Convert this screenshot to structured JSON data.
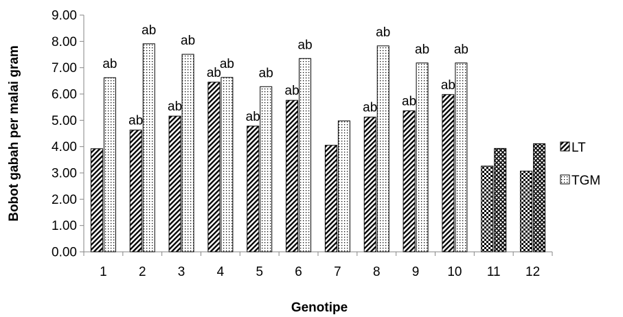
{
  "chart_data": {
    "type": "bar",
    "xlabel": "Genotipe",
    "ylabel": "Bobot gabah per malai gram",
    "ylim": [
      0,
      9
    ],
    "yticks": [
      "0.00",
      "1.00",
      "2.00",
      "3.00",
      "4.00",
      "5.00",
      "6.00",
      "7.00",
      "8.00",
      "9.00"
    ],
    "categories": [
      "1",
      "2",
      "3",
      "4",
      "5",
      "6",
      "7",
      "8",
      "9",
      "10",
      "11",
      "12"
    ],
    "legend_position": "right",
    "grid": false,
    "series": [
      {
        "name": "LT",
        "values": [
          3.92,
          4.63,
          5.16,
          6.45,
          4.78,
          5.76,
          4.05,
          5.12,
          5.36,
          5.98,
          3.26,
          3.07
        ],
        "labels": [
          "",
          "ab",
          "ab",
          "ab",
          "ab",
          "ab",
          "",
          "ab",
          "ab",
          "ab",
          "",
          ""
        ]
      },
      {
        "name": "TGM",
        "values": [
          6.62,
          7.91,
          7.51,
          6.63,
          6.28,
          7.35,
          4.98,
          7.83,
          7.18,
          7.18,
          3.93,
          4.11
        ],
        "labels": [
          "ab",
          "ab",
          "ab",
          "ab",
          "ab",
          "ab",
          "",
          "ab",
          "ab",
          "ab",
          "",
          ""
        ]
      }
    ]
  }
}
